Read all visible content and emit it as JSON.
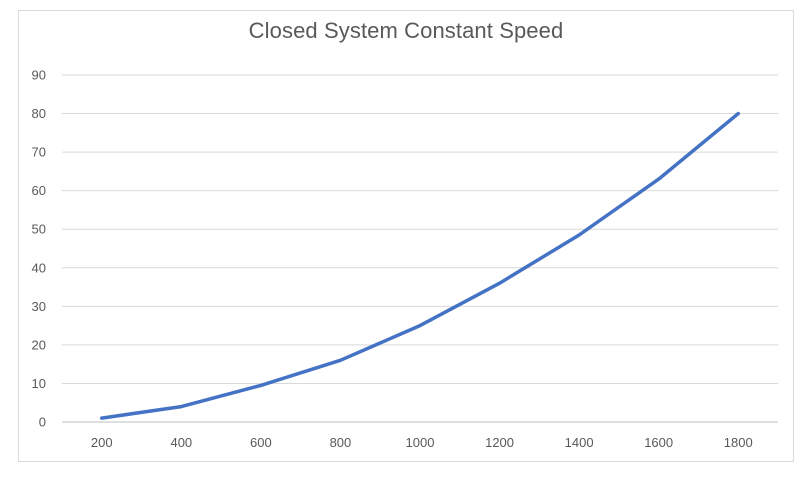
{
  "chart_data": {
    "type": "line",
    "title": "Closed System Constant Speed",
    "xlabel": "",
    "ylabel": "",
    "categories": [
      "200",
      "400",
      "600",
      "800",
      "1000",
      "1200",
      "1400",
      "1600",
      "1800"
    ],
    "series": [
      {
        "values": [
          1,
          4,
          9.5,
          16,
          25,
          36,
          48.5,
          63,
          80
        ]
      }
    ],
    "ylim": [
      0,
      90
    ],
    "y_ticks": [
      0,
      10,
      20,
      30,
      40,
      50,
      60,
      70,
      80,
      90
    ],
    "grid": "horizontal",
    "legend": "none",
    "colors": {
      "line": "#4472c4",
      "grid": "#d9d9d9",
      "axis": "#bfbfbf",
      "text": "#595959"
    }
  }
}
